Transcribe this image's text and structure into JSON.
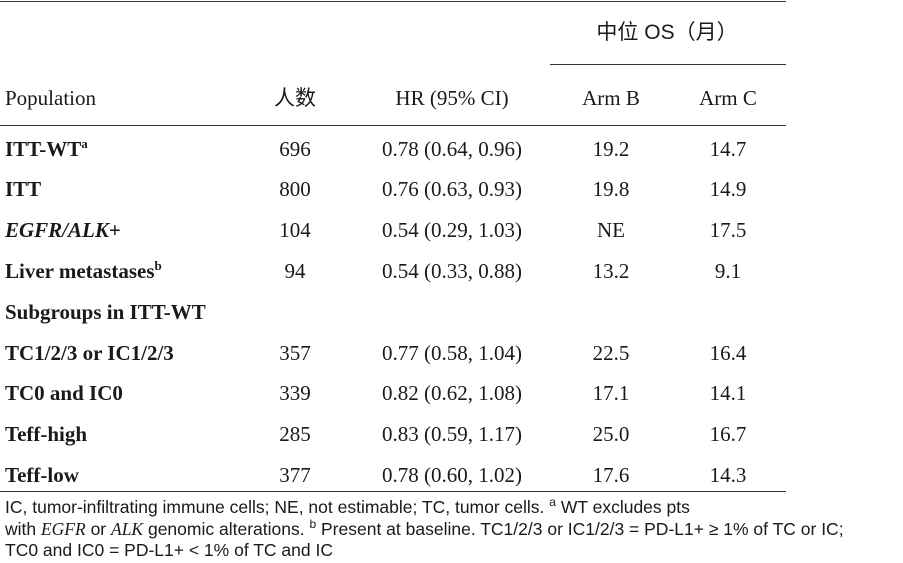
{
  "header": {
    "os_group": "中位 OS（月）",
    "population": "Population",
    "count": "人数",
    "hr": "HR (95% CI)",
    "arm_b": "Arm B",
    "arm_c": "Arm C"
  },
  "rows": [
    {
      "label": "ITT-WT",
      "sup": "a",
      "count": "696",
      "hr": "0.78 (0.64, 0.96)",
      "arm_b": "19.2",
      "arm_c": "14.7"
    },
    {
      "label": "ITT",
      "sup": "",
      "count": "800",
      "hr": "0.76 (0.63, 0.93)",
      "arm_b": "19.8",
      "arm_c": "14.9"
    },
    {
      "label": "EGFR/ALK",
      "label_suffix": "+",
      "count": "104",
      "hr": "0.54 (0.29, 1.03)",
      "arm_b": "NE",
      "arm_c": "17.5"
    },
    {
      "label": "Liver metastases",
      "sup": "b",
      "count": "94",
      "hr": "0.54 (0.33, 0.88)",
      "arm_b": "13.2",
      "arm_c": "9.1"
    },
    {
      "label": "Subgroups in ITT-WT"
    },
    {
      "label": "TC1/2/3 or IC1/2/3",
      "count": "357",
      "hr": "0.77 (0.58, 1.04)",
      "arm_b": "22.5",
      "arm_c": "16.4"
    },
    {
      "label": "TC0 and IC0",
      "count": "339",
      "hr": "0.82 (0.62, 1.08)",
      "arm_b": "17.1",
      "arm_c": "14.1"
    },
    {
      "label": "Teff-high",
      "count": "285",
      "hr": "0.83 (0.59, 1.17)",
      "arm_b": "25.0",
      "arm_c": "16.7"
    },
    {
      "label": "Teff-low",
      "count": "377",
      "hr": "0.78 (0.60, 1.02)",
      "arm_b": "17.6",
      "arm_c": "14.3"
    }
  ],
  "footnote": {
    "p1": "IC, tumor-infiltrating immune cells; NE, not estimable; TC, tumor cells. ",
    "sup_a": "a",
    "p2": " WT excludes pts",
    "p3": "with ",
    "egfr": "EGFR",
    "p4": " or ",
    "alk": "ALK",
    "p5": " genomic alterations. ",
    "sup_b": "b",
    "p6": " Present at baseline. TC1/2/3 or IC1/2/3 = PD-L1+ ≥ 1% of TC or IC;",
    "p7": "TC0 and IC0 = PD-L1+ < 1% of TC and IC"
  }
}
